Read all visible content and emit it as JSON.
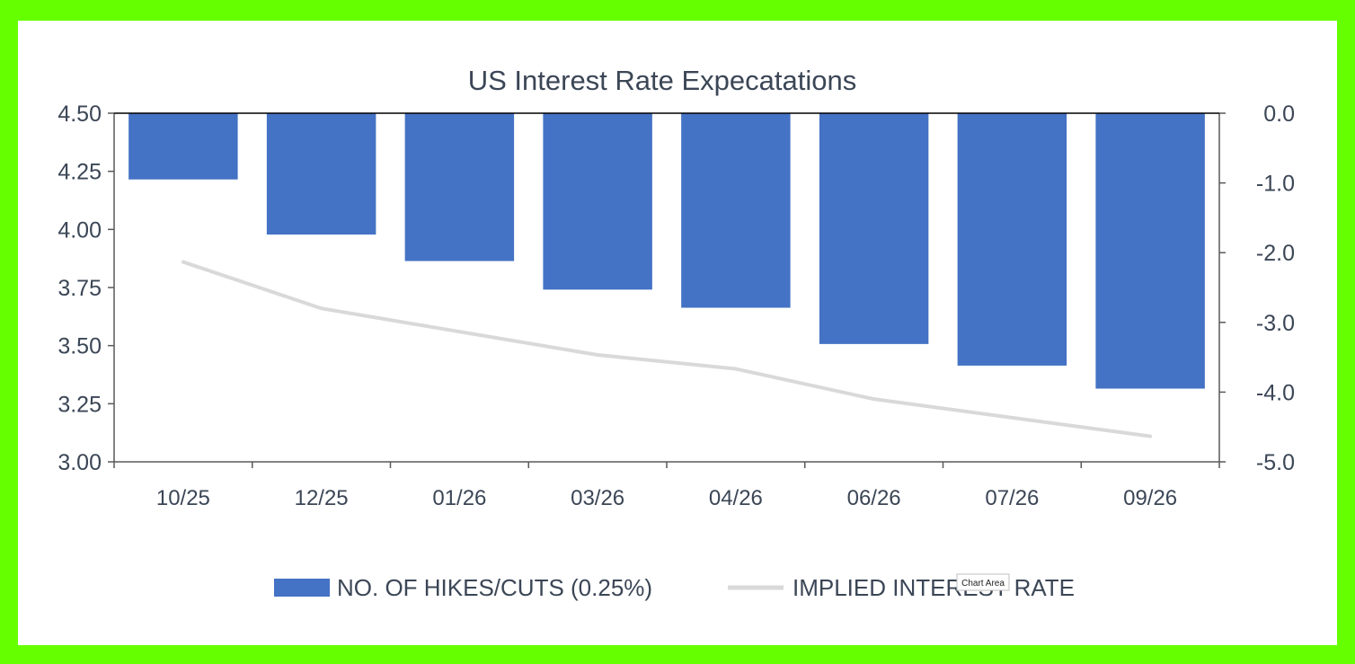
{
  "chart_data": {
    "type": "bar",
    "title": "US Interest Rate Expecatations",
    "categories": [
      "10/25",
      "12/25",
      "01/26",
      "03/26",
      "04/26",
      "06/26",
      "07/26",
      "09/26"
    ],
    "series": [
      {
        "name": "NO. OF HIKES/CUTS (0.25%)",
        "type": "bar",
        "axis": "right",
        "color": "#4472c4",
        "values": [
          -0.95,
          -1.74,
          -2.12,
          -2.53,
          -2.79,
          -3.31,
          -3.62,
          -3.95
        ]
      },
      {
        "name": "IMPLIED INTEREST RATE",
        "type": "line",
        "axis": "left",
        "color": "#d9d9d9",
        "values": [
          3.86,
          3.66,
          3.56,
          3.46,
          3.4,
          3.27,
          3.19,
          3.11
        ]
      }
    ],
    "y_left": {
      "min": 3.0,
      "max": 4.5,
      "ticks": [
        "3.00",
        "3.25",
        "3.50",
        "3.75",
        "4.00",
        "4.25",
        "4.50"
      ]
    },
    "y_right": {
      "min": -5.0,
      "max": 0.0,
      "ticks": [
        "-5.0",
        "-4.0",
        "-3.0",
        "-2.0",
        "-1.0",
        "0.0"
      ]
    },
    "grid": false,
    "legend": "bottom-center"
  },
  "tooltip": {
    "label": "Chart Area"
  }
}
